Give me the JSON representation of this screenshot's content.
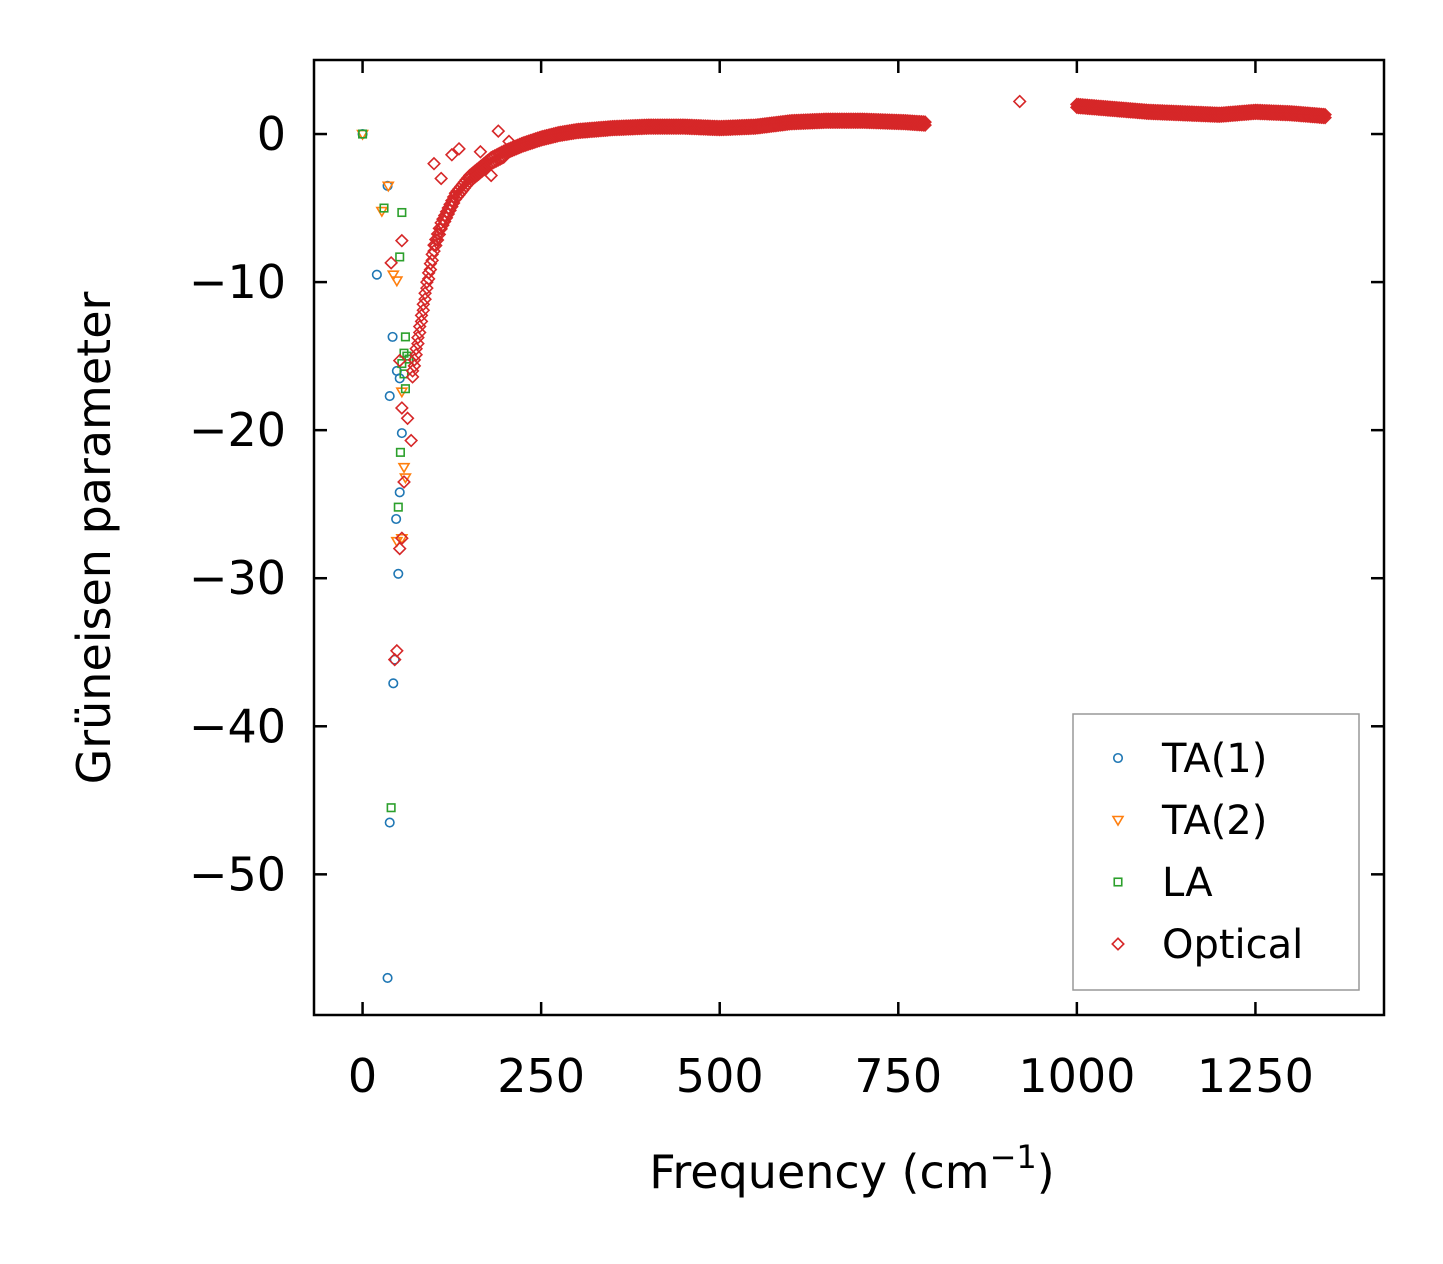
{
  "chart_data": {
    "type": "scatter",
    "title": "",
    "xlabel": "Frequency (cm",
    "xlabel_sup": "−1",
    "xlabel_suffix": ")",
    "ylabel": "Grüneisen parameter",
    "xlim": [
      -68,
      1430
    ],
    "ylim": [
      -59.5,
      5
    ],
    "xticks": [
      0,
      250,
      500,
      750,
      1000,
      1250
    ],
    "xtick_labels": [
      "0",
      "250",
      "500",
      "750",
      "1000",
      "1250"
    ],
    "yticks": [
      0,
      -10,
      -20,
      -30,
      -40,
      -50
    ],
    "ytick_labels": [
      "0",
      "−10",
      "−20",
      "−30",
      "−40",
      "−50"
    ],
    "legend_position": "bottom-right",
    "series": [
      {
        "name": "TA(1)",
        "marker": "circle",
        "color": "#1f77b4",
        "points": [
          [
            0,
            0
          ],
          [
            35,
            -3.5
          ],
          [
            20,
            -9.5
          ],
          [
            42,
            -13.7
          ],
          [
            48,
            -16
          ],
          [
            52,
            -16.5
          ],
          [
            38,
            -17.7
          ],
          [
            55,
            -20.2
          ],
          [
            52,
            -24.2
          ],
          [
            47,
            -26
          ],
          [
            50,
            -29.7
          ],
          [
            45,
            -35.5
          ],
          [
            43,
            -37.1
          ],
          [
            38,
            -46.5
          ],
          [
            35,
            -57
          ]
        ]
      },
      {
        "name": "TA(2)",
        "marker": "triangle_down",
        "color": "#ff7f0e",
        "points": [
          [
            0,
            0
          ],
          [
            36,
            -3.5
          ],
          [
            27,
            -5.2
          ],
          [
            43,
            -9.5
          ],
          [
            48,
            -9.9
          ],
          [
            55,
            -17.4
          ],
          [
            58,
            -22.5
          ],
          [
            60,
            -23.2
          ],
          [
            55,
            -27.3
          ],
          [
            48,
            -27.5
          ]
        ]
      },
      {
        "name": "LA",
        "marker": "square",
        "color": "#2ca02c",
        "points": [
          [
            0,
            0
          ],
          [
            30,
            -5
          ],
          [
            55,
            -5.3
          ],
          [
            52,
            -8.3
          ],
          [
            60,
            -13.7
          ],
          [
            58,
            -14.8
          ],
          [
            62,
            -15
          ],
          [
            65,
            -15.2
          ],
          [
            55,
            -15.5
          ],
          [
            58,
            -16.2
          ],
          [
            60,
            -17.2
          ],
          [
            53,
            -21.5
          ],
          [
            50,
            -25.2
          ],
          [
            40,
            -45.5
          ]
        ]
      },
      {
        "name": "Optical",
        "marker": "diamond",
        "color": "#d62728",
        "points": [
          [
            40,
            -8.7
          ],
          [
            55,
            -7.2
          ],
          [
            52,
            -15.3
          ],
          [
            55,
            -18.5
          ],
          [
            63,
            -19.2
          ],
          [
            68,
            -20.7
          ],
          [
            58,
            -23.5
          ],
          [
            55,
            -27.3
          ],
          [
            52,
            -28
          ],
          [
            45,
            -35.5
          ],
          [
            48,
            -34.9
          ],
          [
            100,
            -2
          ],
          [
            110,
            -3
          ],
          [
            125,
            -1.4
          ],
          [
            135,
            -1
          ],
          [
            150,
            -3
          ],
          [
            165,
            -1.2
          ],
          [
            180,
            -2.8
          ],
          [
            190,
            0.2
          ],
          [
            205,
            -0.5
          ],
          [
            920,
            2.2
          ]
        ],
        "band": [
          [
            70,
            -16
          ],
          [
            80,
            -13
          ],
          [
            90,
            -10
          ],
          [
            100,
            -7.5
          ],
          [
            110,
            -6
          ],
          [
            120,
            -5
          ],
          [
            130,
            -4
          ],
          [
            140,
            -3.4
          ],
          [
            150,
            -2.8
          ],
          [
            165,
            -2.2
          ],
          [
            180,
            -1.6
          ],
          [
            200,
            -1.1
          ],
          [
            225,
            -0.6
          ],
          [
            250,
            -0.2
          ],
          [
            275,
            0.1
          ],
          [
            300,
            0.3
          ],
          [
            350,
            0.5
          ],
          [
            400,
            0.6
          ],
          [
            450,
            0.6
          ],
          [
            500,
            0.5
          ],
          [
            550,
            0.6
          ],
          [
            600,
            0.9
          ],
          [
            650,
            1.0
          ],
          [
            700,
            1.0
          ],
          [
            760,
            0.9
          ],
          [
            790,
            0.8
          ],
          [
            1000,
            2.0
          ],
          [
            1050,
            1.8
          ],
          [
            1100,
            1.6
          ],
          [
            1150,
            1.5
          ],
          [
            1200,
            1.4
          ],
          [
            1250,
            1.6
          ],
          [
            1300,
            1.5
          ],
          [
            1350,
            1.3
          ]
        ]
      }
    ]
  }
}
